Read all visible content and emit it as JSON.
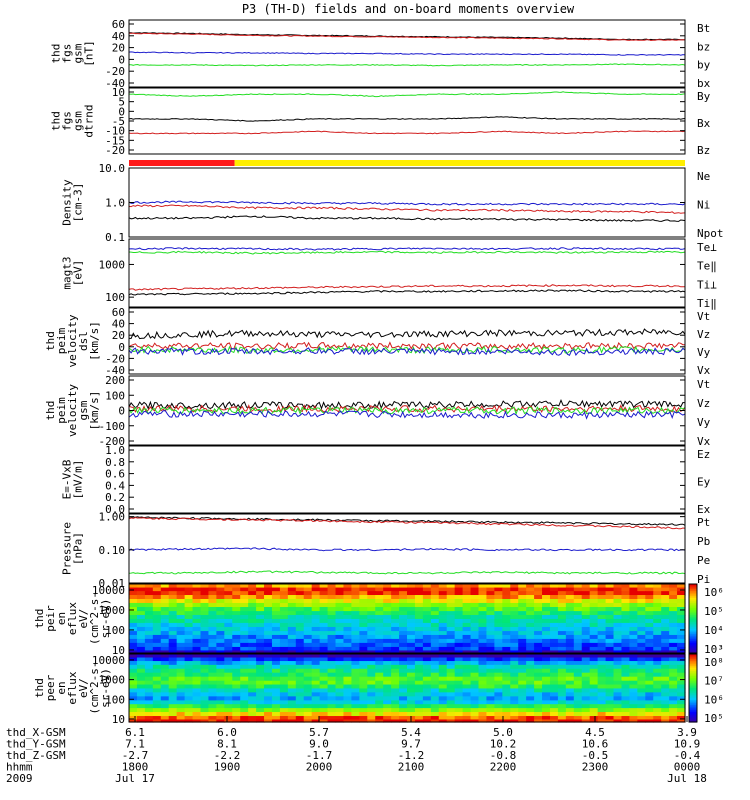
{
  "title": "P3 (TH-D) fields and on-board moments overview",
  "colors": {
    "black": "#000000",
    "red": "#d21e1e",
    "green": "#22dd22",
    "blue": "#1a1acc",
    "yellow": "#ffee00",
    "barred": "#ff1a1a"
  },
  "chart_data": [
    {
      "type": "line",
      "ylabel": [
        "thd",
        "fgs",
        "gsm",
        "[nT]"
      ],
      "yticks": [
        "60",
        "40",
        "20",
        "0",
        "-20",
        "-40"
      ],
      "ylim": [
        -40,
        60
      ],
      "legend": [
        {
          "label": "Bt",
          "color": "black"
        },
        {
          "label": "bz",
          "color": "red"
        },
        {
          "label": "by",
          "color": "green"
        },
        {
          "label": "bx",
          "color": "blue"
        }
      ],
      "series": [
        {
          "name": "Bt",
          "color": "black",
          "values": [
            41,
            40,
            38,
            37,
            36,
            35,
            34,
            33,
            31,
            31
          ]
        },
        {
          "name": "bz",
          "color": "red",
          "values": [
            40,
            39,
            37,
            36,
            35,
            34,
            33,
            32,
            30,
            30
          ]
        },
        {
          "name": "by",
          "color": "green",
          "values": [
            -7,
            -7,
            -8,
            -7,
            -7,
            -8,
            -7,
            -7,
            -6,
            -7
          ]
        },
        {
          "name": "bx",
          "color": "blue",
          "values": [
            12,
            11,
            11,
            10,
            10,
            9,
            9,
            9,
            8,
            8
          ]
        }
      ]
    },
    {
      "type": "line",
      "ylabel": [
        "thd",
        "fgs",
        "gsm",
        "dtrnd"
      ],
      "yticks": [
        "10",
        "5",
        "0",
        "-5",
        "-10",
        "-15",
        "-20"
      ],
      "ylim": [
        -20,
        12
      ],
      "legend": [
        {
          "label": "By",
          "color": "green"
        },
        {
          "label": "Bx",
          "color": "black"
        },
        {
          "label": "Bz",
          "color": "red"
        }
      ],
      "series": [
        {
          "name": "By",
          "color": "green",
          "values": [
            9,
            8,
            9,
            9,
            8,
            9,
            9,
            10,
            9,
            9
          ]
        },
        {
          "name": "Bx",
          "color": "black",
          "values": [
            -3,
            -3,
            -4,
            -3,
            -3,
            -3,
            -2,
            -3,
            -3,
            -3
          ]
        },
        {
          "name": "Bz",
          "color": "red",
          "values": [
            -10,
            -10,
            -10,
            -9,
            -10,
            -10,
            -9,
            -10,
            -9,
            -9
          ]
        }
      ]
    },
    {
      "type": "bar",
      "label": "",
      "segments": [
        {
          "color": "barred",
          "fraction": 0.19
        },
        {
          "color": "yellow",
          "fraction": 0.81
        }
      ]
    },
    {
      "type": "line",
      "ylabel": [
        "Density",
        "[cm-3]"
      ],
      "yticks": [
        "10.0",
        "1.0",
        "0.1"
      ],
      "scale": "log",
      "ylim": [
        0.1,
        10
      ],
      "legend": [
        {
          "label": "Ne",
          "color": "red"
        },
        {
          "label": "Ni",
          "color": "black"
        },
        {
          "label": "Npot",
          "color": "blue"
        }
      ],
      "series": [
        {
          "name": "Ne",
          "color": "red",
          "values": [
            0.8,
            0.8,
            0.7,
            0.7,
            0.65,
            0.6,
            0.6,
            0.55,
            0.55,
            0.5
          ]
        },
        {
          "name": "Ni",
          "color": "black",
          "values": [
            0.35,
            0.35,
            0.4,
            0.35,
            0.35,
            0.33,
            0.33,
            0.32,
            0.3,
            0.3
          ]
        },
        {
          "name": "Npot",
          "color": "blue",
          "values": [
            1.0,
            1.05,
            1.0,
            0.95,
            0.95,
            0.9,
            0.9,
            0.9,
            0.9,
            0.9
          ]
        }
      ]
    },
    {
      "type": "line",
      "ylabel": [
        "magt3",
        "[eV]"
      ],
      "yticks": [
        "1000",
        "100"
      ],
      "scale": "log",
      "ylim": [
        50,
        6000
      ],
      "legend": [
        {
          "label": "Te⊥",
          "color": "red"
        },
        {
          "label": "Te‖",
          "color": "black"
        },
        {
          "label": "Ti⊥",
          "color": "blue"
        },
        {
          "label": "Ti‖",
          "color": "green"
        }
      ],
      "series": [
        {
          "name": "Te⊥",
          "color": "red",
          "values": [
            170,
            180,
            190,
            200,
            210,
            220,
            220,
            230,
            220,
            220
          ]
        },
        {
          "name": "Te‖",
          "color": "black",
          "values": [
            120,
            125,
            130,
            140,
            150,
            150,
            155,
            160,
            150,
            150
          ]
        },
        {
          "name": "Ti⊥",
          "color": "blue",
          "values": [
            3000,
            3100,
            3000,
            2900,
            3000,
            3100,
            3000,
            3100,
            3000,
            3000
          ]
        },
        {
          "name": "Ti‖",
          "color": "green",
          "values": [
            2300,
            2400,
            2200,
            2300,
            2400,
            2300,
            2400,
            2300,
            2400,
            2400
          ]
        }
      ]
    },
    {
      "type": "line",
      "ylabel": [
        "thd",
        "peim",
        "velocity",
        "dsl",
        "[km/s]"
      ],
      "yticks": [
        "60",
        "40",
        "20",
        "0",
        "-20",
        "-40"
      ],
      "ylim": [
        -40,
        60
      ],
      "legend": [
        {
          "label": "Vt",
          "color": "black"
        },
        {
          "label": "Vz",
          "color": "red"
        },
        {
          "label": "Vy",
          "color": "green"
        },
        {
          "label": "Vx",
          "color": "blue"
        }
      ],
      "series": [
        {
          "name": "Vt",
          "color": "black",
          "values": [
            18,
            20,
            22,
            20,
            20,
            21,
            22,
            22,
            23,
            24
          ]
        },
        {
          "name": "Vz",
          "color": "red",
          "values": [
            3,
            3,
            2,
            3,
            3,
            3,
            2,
            3,
            3,
            3
          ]
        },
        {
          "name": "Vy",
          "color": "green",
          "values": [
            -3,
            -3,
            -4,
            -3,
            -3,
            -4,
            -3,
            -4,
            -3,
            -3
          ]
        },
        {
          "name": "Vx",
          "color": "blue",
          "values": [
            -5,
            -6,
            -6,
            -5,
            -6,
            -6,
            -6,
            -7,
            -6,
            -6
          ]
        }
      ]
    },
    {
      "type": "line",
      "ylabel": [
        "thd",
        "peim",
        "velocity",
        "gsm",
        "[km/s]"
      ],
      "yticks": [
        "200",
        "100",
        "0",
        "-100",
        "-200"
      ],
      "ylim": [
        -200,
        200
      ],
      "legend": [
        {
          "label": "Vt",
          "color": "black"
        },
        {
          "label": "Vz",
          "color": "red"
        },
        {
          "label": "Vy",
          "color": "green"
        },
        {
          "label": "Vx",
          "color": "blue"
        }
      ],
      "series": [
        {
          "name": "Vt",
          "color": "black",
          "values": [
            30,
            30,
            32,
            30,
            32,
            34,
            36,
            40,
            38,
            36
          ]
        },
        {
          "name": "Vz",
          "color": "red",
          "values": [
            10,
            10,
            10,
            10,
            10,
            10,
            10,
            10,
            10,
            10
          ]
        },
        {
          "name": "Vy",
          "color": "green",
          "values": [
            0,
            0,
            0,
            0,
            0,
            0,
            0,
            0,
            0,
            0
          ]
        },
        {
          "name": "Vx",
          "color": "blue",
          "values": [
            -20,
            -20,
            -22,
            -20,
            -22,
            -24,
            -26,
            -28,
            -26,
            -25
          ]
        }
      ]
    },
    {
      "type": "line",
      "ylabel": [
        "E=-VxB",
        "[mV/m]"
      ],
      "yticks": [
        "1.0",
        "0.8",
        "0.6",
        "0.4",
        "0.2",
        "0.0"
      ],
      "ylim": [
        0,
        1
      ],
      "legend": [
        {
          "label": "Ez",
          "color": "red"
        },
        {
          "label": "Ey",
          "color": "green"
        },
        {
          "label": "Ex",
          "color": "blue"
        }
      ],
      "series": []
    },
    {
      "type": "line",
      "ylabel": [
        "Pressure",
        "[nPa]"
      ],
      "yticks": [
        "1.00",
        "0.10",
        "0.01"
      ],
      "scale": "log",
      "ylim": [
        0.01,
        1.2
      ],
      "legend": [
        {
          "label": "Pt",
          "color": "black"
        },
        {
          "label": "Pb",
          "color": "red"
        },
        {
          "label": "Pe",
          "color": "green"
        },
        {
          "label": "Pi",
          "color": "blue"
        }
      ],
      "series": [
        {
          "name": "Pt",
          "color": "black",
          "values": [
            0.95,
            0.9,
            0.85,
            0.8,
            0.75,
            0.72,
            0.68,
            0.65,
            0.6,
            0.58
          ]
        },
        {
          "name": "Pb",
          "color": "red",
          "values": [
            0.9,
            0.85,
            0.8,
            0.75,
            0.7,
            0.65,
            0.6,
            0.55,
            0.5,
            0.45
          ]
        },
        {
          "name": "Pe",
          "color": "green",
          "values": [
            0.02,
            0.02,
            0.022,
            0.021,
            0.02,
            0.02,
            0.021,
            0.02,
            0.02,
            0.02
          ]
        },
        {
          "name": "Pi",
          "color": "blue",
          "values": [
            0.1,
            0.105,
            0.11,
            0.1,
            0.1,
            0.105,
            0.1,
            0.1,
            0.1,
            0.1
          ]
        }
      ]
    },
    {
      "type": "heatmap",
      "ylabel": [
        "thd",
        "peir",
        "en",
        "eflux",
        "eV/",
        "(cm^2-s-",
        "sr-eV)"
      ],
      "yticks": [
        "10000",
        "1000",
        "100",
        "10"
      ],
      "scale": "log",
      "ylim": [
        7,
        20000
      ],
      "colorbar": {
        "ticks": [
          "10⁶",
          "10⁵",
          "10⁴",
          "10³"
        ],
        "range": [
          3,
          6
        ]
      },
      "bands": [
        {
          "e": 16000,
          "v": 5.6
        },
        {
          "e": 11000,
          "v": 5.9
        },
        {
          "e": 7000,
          "v": 5.9
        },
        {
          "e": 4500,
          "v": 5.6
        },
        {
          "e": 2800,
          "v": 5.3
        },
        {
          "e": 1800,
          "v": 5.0
        },
        {
          "e": 1100,
          "v": 4.8
        },
        {
          "e": 700,
          "v": 4.6
        },
        {
          "e": 450,
          "v": 4.4
        },
        {
          "e": 280,
          "v": 4.3
        },
        {
          "e": 180,
          "v": 4.2
        },
        {
          "e": 110,
          "v": 4.1
        },
        {
          "e": 70,
          "v": 4.0
        },
        {
          "e": 45,
          "v": 3.9
        },
        {
          "e": 28,
          "v": 3.8
        },
        {
          "e": 18,
          "v": 3.7
        },
        {
          "e": 11,
          "v": 3.6
        },
        {
          "e": 8,
          "v": 3.2
        }
      ]
    },
    {
      "type": "heatmap",
      "ylabel": [
        "thd",
        "peer",
        "en",
        "eflux",
        "eV/",
        "(cm^2-s-",
        "sr-eV)"
      ],
      "yticks": [
        "10000",
        "1000",
        "100",
        "10"
      ],
      "scale": "log",
      "ylim": [
        7,
        20000
      ],
      "colorbar": {
        "ticks": [
          "10⁸",
          "10⁷",
          "10⁶",
          "10⁵"
        ],
        "range": [
          5,
          8
        ]
      },
      "bands": [
        {
          "e": 16000,
          "v": 5.0
        },
        {
          "e": 11000,
          "v": 5.6
        },
        {
          "e": 7000,
          "v": 6.0
        },
        {
          "e": 4500,
          "v": 6.3
        },
        {
          "e": 2800,
          "v": 6.5
        },
        {
          "e": 1800,
          "v": 6.6
        },
        {
          "e": 1100,
          "v": 6.8
        },
        {
          "e": 700,
          "v": 6.8
        },
        {
          "e": 450,
          "v": 6.6
        },
        {
          "e": 280,
          "v": 6.3
        },
        {
          "e": 180,
          "v": 6.1
        },
        {
          "e": 110,
          "v": 6.0
        },
        {
          "e": 70,
          "v": 6.2
        },
        {
          "e": 45,
          "v": 6.6
        },
        {
          "e": 28,
          "v": 7.0
        },
        {
          "e": 18,
          "v": 7.4
        },
        {
          "e": 11,
          "v": 7.8
        },
        {
          "e": 8,
          "v": 8.0
        }
      ]
    }
  ],
  "xaxis": {
    "rows": [
      {
        "label": "thd_X-GSM",
        "values": [
          "6.1",
          "6.0",
          "5.7",
          "5.4",
          "5.0",
          "4.5",
          "3.9"
        ]
      },
      {
        "label": "thd_Y-GSM",
        "values": [
          "7.1",
          "8.1",
          "9.0",
          "9.7",
          "10.2",
          "10.6",
          "10.9"
        ]
      },
      {
        "label": "thd_Z-GSM",
        "values": [
          "-2.7",
          "-2.2",
          "-1.7",
          "-1.2",
          "-0.8",
          "-0.5",
          "-0.4"
        ]
      },
      {
        "label": "hhmm",
        "values": [
          "1800",
          "1900",
          "2000",
          "2100",
          "2200",
          "2300",
          "0000"
        ]
      },
      {
        "label": "2009",
        "values": [
          "Jul 17",
          "",
          "",
          "",
          "",
          "",
          "Jul 18"
        ]
      }
    ]
  }
}
